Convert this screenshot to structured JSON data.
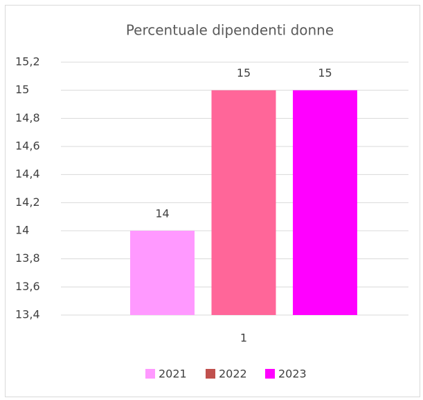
{
  "chart_data": {
    "type": "bar",
    "title": "Percentuale dipendenti donne",
    "categories": [
      "1"
    ],
    "series": [
      {
        "name": "2021",
        "color": "#ff99ff",
        "values": [
          14
        ]
      },
      {
        "name": "2022",
        "color": "#ff6699",
        "legend_color": "#c0504d",
        "values": [
          15
        ]
      },
      {
        "name": "2023",
        "color": "#ff00ff",
        "values": [
          15
        ]
      }
    ],
    "ylim": [
      13.4,
      15.2
    ],
    "yticks": [
      {
        "value": 13.4,
        "label": "13,4"
      },
      {
        "value": 13.6,
        "label": "13,6"
      },
      {
        "value": 13.8,
        "label": "13,8"
      },
      14,
      {
        "value": 14.2,
        "label": "14,2"
      },
      {
        "value": 14.4,
        "label": "14,4"
      },
      {
        "value": 14.6,
        "label": "14,6"
      },
      {
        "value": 14.8,
        "label": "14,8"
      },
      15,
      {
        "value": 15.2,
        "label": "15,2"
      }
    ],
    "grid": true,
    "legend": "bottom"
  }
}
